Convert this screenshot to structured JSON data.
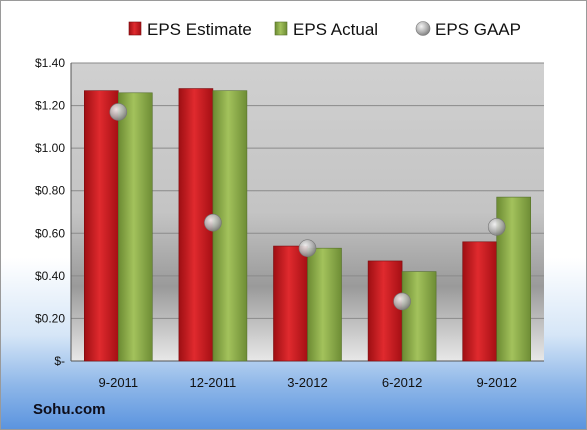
{
  "source_label": "Sohu.com",
  "chart_data": {
    "type": "bar",
    "categories": [
      "9-2011",
      "12-2011",
      "3-2012",
      "6-2012",
      "9-2012"
    ],
    "series": [
      {
        "name": "EPS Estimate",
        "kind": "bar",
        "color": "#c8161d",
        "values": [
          1.27,
          1.28,
          0.54,
          0.47,
          0.56
        ]
      },
      {
        "name": "EPS Actual",
        "kind": "bar",
        "color": "#8faf4a",
        "values": [
          1.26,
          1.27,
          0.53,
          0.42,
          0.77
        ]
      },
      {
        "name": "EPS GAAP",
        "kind": "marker",
        "color": "#a6a6a6",
        "values": [
          1.17,
          0.65,
          0.53,
          0.28,
          0.63
        ]
      }
    ],
    "y_ticks": [
      {
        "value": 0,
        "label": "$-"
      },
      {
        "value": 0.2,
        "label": "$0.20"
      },
      {
        "value": 0.4,
        "label": "$0.40"
      },
      {
        "value": 0.6,
        "label": "$0.60"
      },
      {
        "value": 0.8,
        "label": "$0.80"
      },
      {
        "value": 1.0,
        "label": "$1.00"
      },
      {
        "value": 1.2,
        "label": "$1.20"
      },
      {
        "value": 1.4,
        "label": "$1.40"
      }
    ],
    "ylim": [
      0,
      1.4
    ],
    "grid": true,
    "legend_position": "top"
  }
}
